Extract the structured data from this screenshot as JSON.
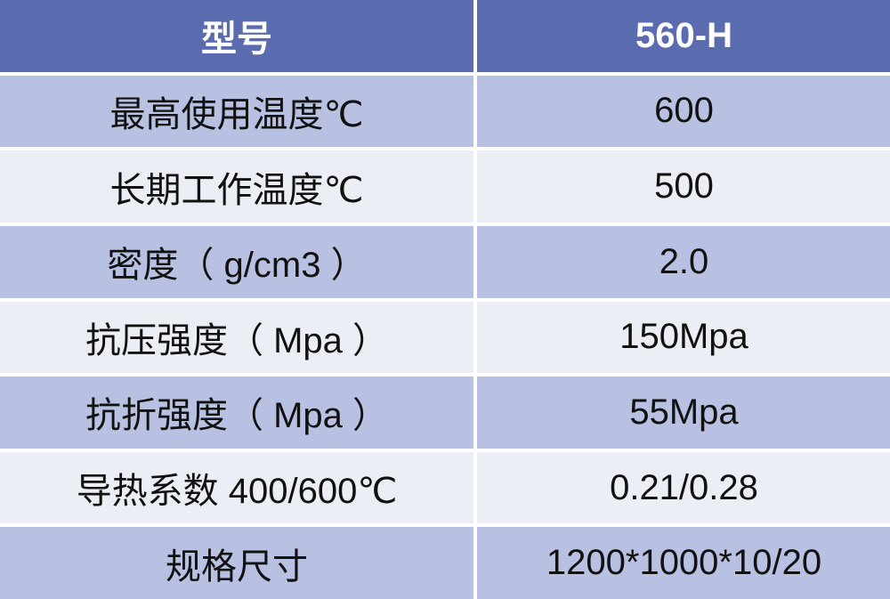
{
  "header": {
    "label": "型号",
    "value": "560-H"
  },
  "rows": [
    {
      "label": "最高使用温度℃",
      "value": "600"
    },
    {
      "label": "长期工作温度℃",
      "value": "500"
    },
    {
      "label": "密度（ g/cm3 ）",
      "value": "2.0"
    },
    {
      "label": "抗压强度（ Mpa ）",
      "value": "150Mpa"
    },
    {
      "label": "抗折强度（ Mpa ）",
      "value": "55Mpa"
    },
    {
      "label": "导热系数 400/600℃",
      "value": "0.21/0.28"
    },
    {
      "label": "规格尺寸",
      "value": "1200*1000*10/20"
    }
  ],
  "colors": {
    "header": "#5b6bb0",
    "row_odd": "#b8c1e2",
    "row_even": "#eceef6"
  }
}
